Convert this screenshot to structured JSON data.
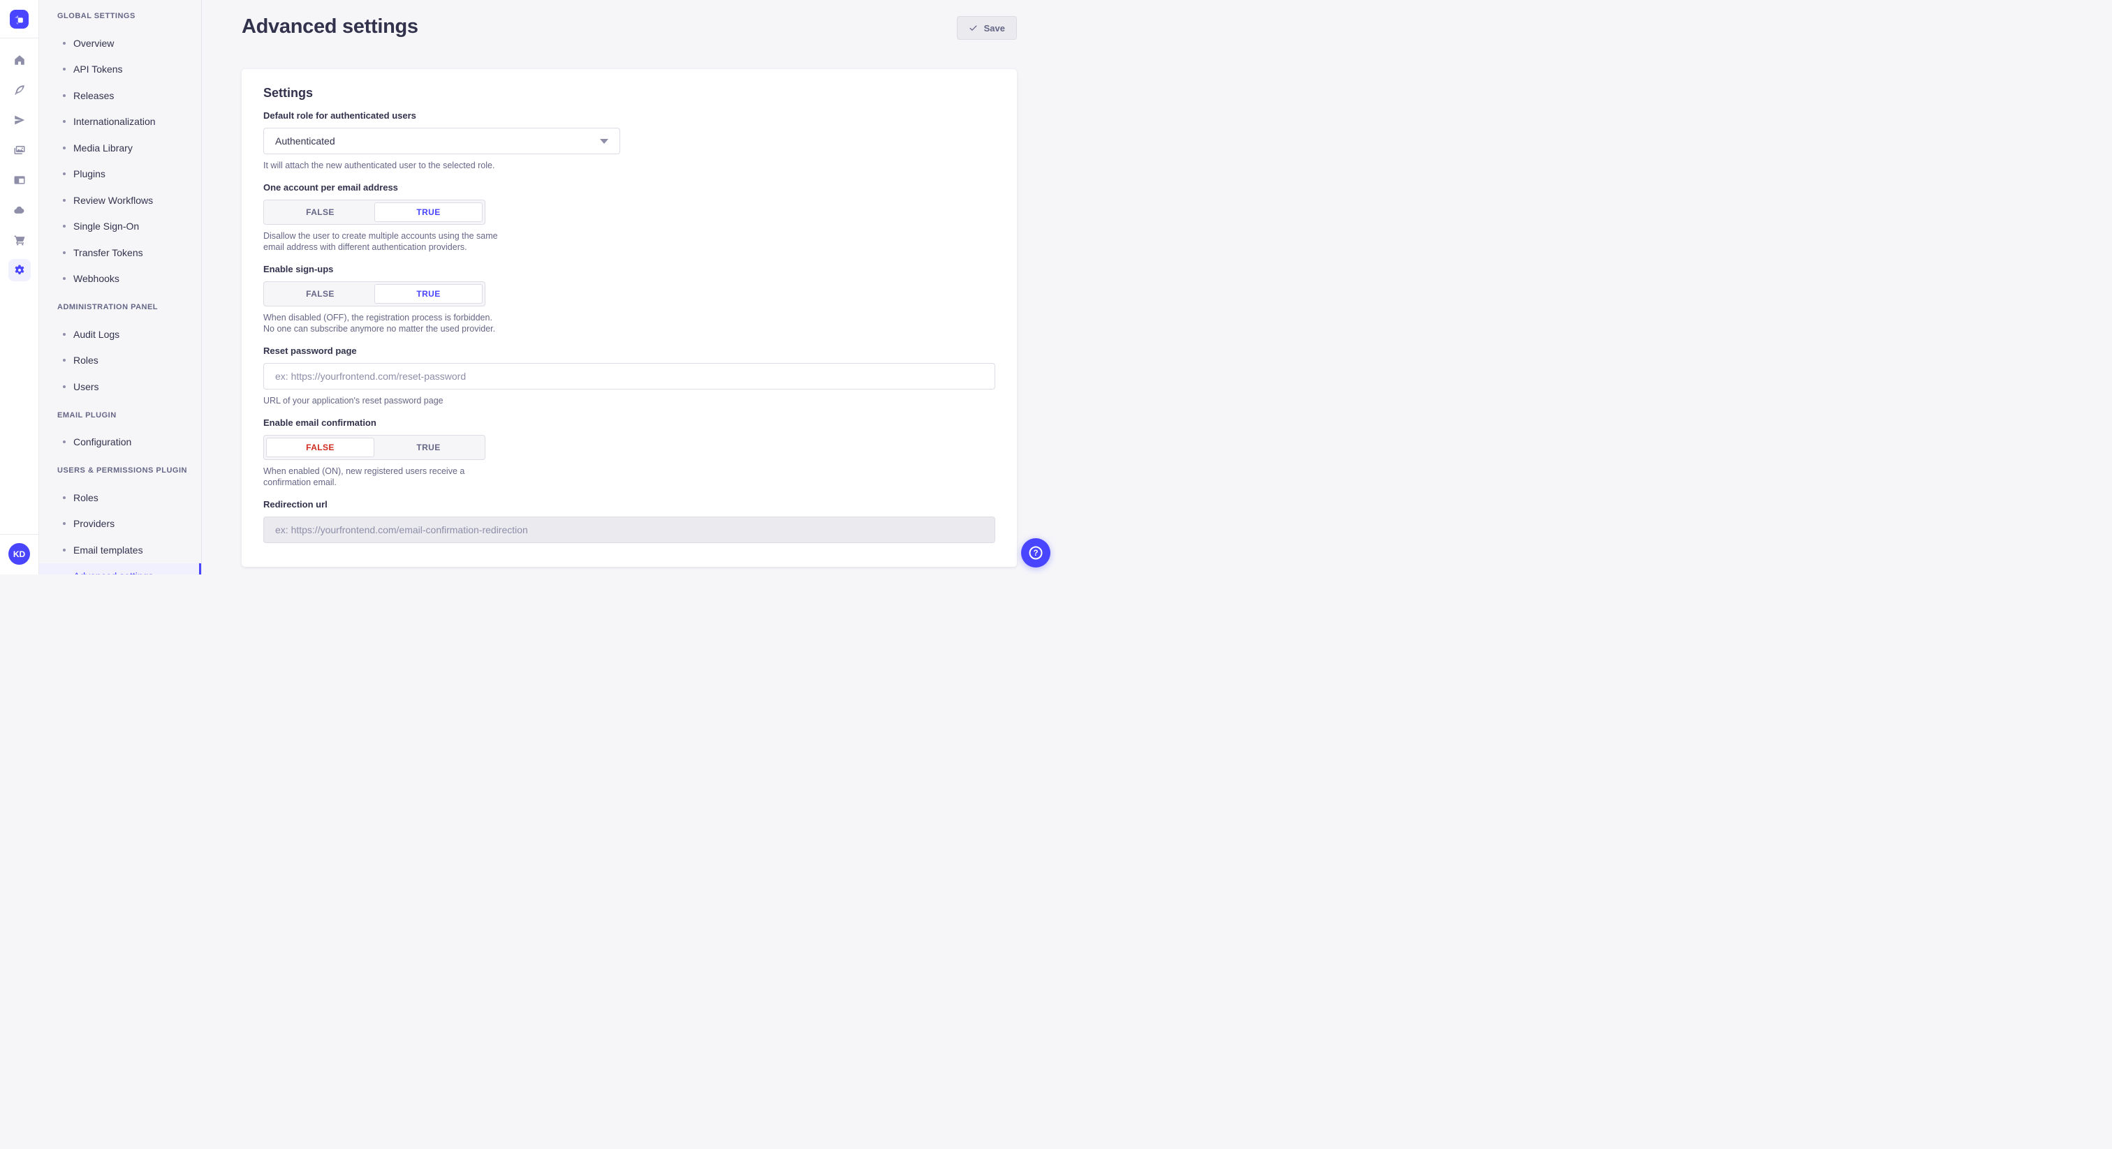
{
  "colors": {
    "accent": "#4945ff",
    "accent-light": "#f0f0ff",
    "danger": "#d02b20",
    "text": "#32324d",
    "text-muted": "#666687",
    "placeholder": "#8e8ea9",
    "border": "#dcdce4",
    "bg": "#f6f6f9",
    "bg-disabled": "#eaeaef",
    "surface": "#ffffff"
  },
  "rail": {
    "logo_icon": "strapi-logo",
    "icons": [
      {
        "name": "home",
        "active": false
      },
      {
        "name": "feather",
        "active": false
      },
      {
        "name": "paper-plane",
        "active": false
      },
      {
        "name": "media",
        "active": false
      },
      {
        "name": "layout",
        "active": false
      },
      {
        "name": "cloud",
        "active": false
      },
      {
        "name": "cart",
        "active": false
      },
      {
        "name": "gear",
        "active": true
      }
    ],
    "avatar_initials": "KD"
  },
  "sidebar": {
    "sections": [
      {
        "title": "GLOBAL SETTINGS",
        "items": [
          {
            "label": "Overview",
            "active": false
          },
          {
            "label": "API Tokens",
            "active": false
          },
          {
            "label": "Releases",
            "active": false
          },
          {
            "label": "Internationalization",
            "active": false
          },
          {
            "label": "Media Library",
            "active": false
          },
          {
            "label": "Plugins",
            "active": false
          },
          {
            "label": "Review Workflows",
            "active": false
          },
          {
            "label": "Single Sign-On",
            "active": false
          },
          {
            "label": "Transfer Tokens",
            "active": false
          },
          {
            "label": "Webhooks",
            "active": false
          }
        ]
      },
      {
        "title": "ADMINISTRATION PANEL",
        "items": [
          {
            "label": "Audit Logs",
            "active": false
          },
          {
            "label": "Roles",
            "active": false
          },
          {
            "label": "Users",
            "active": false
          }
        ]
      },
      {
        "title": "EMAIL PLUGIN",
        "items": [
          {
            "label": "Configuration",
            "active": false
          }
        ]
      },
      {
        "title": "USERS & PERMISSIONS PLUGIN",
        "items": [
          {
            "label": "Roles",
            "active": false
          },
          {
            "label": "Providers",
            "active": false
          },
          {
            "label": "Email templates",
            "active": false
          },
          {
            "label": "Advanced settings",
            "active": true
          }
        ]
      }
    ]
  },
  "header": {
    "title": "Advanced settings",
    "save_label": "Save",
    "save_icon": "check"
  },
  "form": {
    "section_title": "Settings",
    "default_role": {
      "label": "Default role for authenticated users",
      "value": "Authenticated",
      "hint": "It will attach the new authenticated user to the selected role."
    },
    "one_account": {
      "label": "One account per email address",
      "options": [
        "FALSE",
        "TRUE"
      ],
      "selected": "TRUE",
      "hint": "Disallow the user to create multiple accounts using the same email address with different authentication providers."
    },
    "enable_signups": {
      "label": "Enable sign-ups",
      "options": [
        "FALSE",
        "TRUE"
      ],
      "selected": "TRUE",
      "hint": "When disabled (OFF), the registration process is forbidden. No one can subscribe anymore no matter the used provider."
    },
    "reset_password": {
      "label": "Reset password page",
      "value": "",
      "placeholder": "ex: https://yourfrontend.com/reset-password",
      "hint": "URL of your application's reset password page"
    },
    "email_confirmation": {
      "label": "Enable email confirmation",
      "options": [
        "FALSE",
        "TRUE"
      ],
      "selected": "FALSE",
      "hint": "When enabled (ON), new registered users receive a confirmation email."
    },
    "redirection_url": {
      "label": "Redirection url",
      "value": "",
      "placeholder": "ex: https://yourfrontend.com/email-confirmation-redirection",
      "disabled": true
    }
  },
  "help_button": {
    "icon": "question-mark"
  }
}
